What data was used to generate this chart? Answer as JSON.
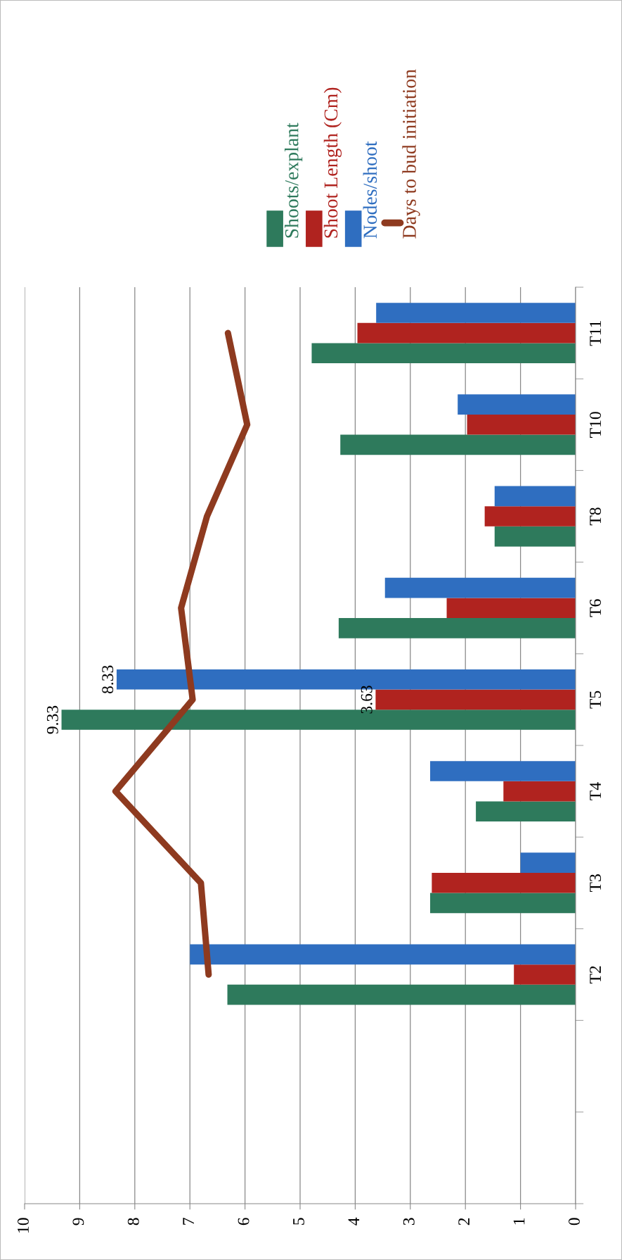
{
  "chart_data": {
    "type": "bar",
    "orientation": "horizontal",
    "categories": [
      "T11",
      "T10",
      "T8",
      "T6",
      "T5",
      "T4",
      "T3",
      "T2",
      null,
      null
    ],
    "series": [
      {
        "name": "Shoots/explant",
        "color": "#2e7a5c",
        "values": [
          4.79,
          4.27,
          1.47,
          4.3,
          9.33,
          1.81,
          2.64,
          6.32,
          null,
          null
        ],
        "value_labels": [
          null,
          null,
          null,
          null,
          "9.33",
          null,
          null,
          null,
          null,
          null
        ]
      },
      {
        "name": "Shoot Length (Cm)",
        "color": "#b0231f",
        "values": [
          3.96,
          1.97,
          1.65,
          2.34,
          3.63,
          1.31,
          2.61,
          1.12,
          null,
          null
        ],
        "value_labels": [
          null,
          null,
          null,
          null,
          "3.63",
          null,
          null,
          null,
          null,
          null
        ]
      },
      {
        "name": "Nodes/shoot",
        "color": "#2f6ec0",
        "values": [
          3.62,
          2.14,
          1.47,
          3.46,
          8.33,
          2.64,
          1.0,
          7.0,
          null,
          null
        ],
        "value_labels": [
          null,
          null,
          null,
          null,
          "8.33",
          null,
          null,
          null,
          null,
          null
        ]
      },
      {
        "name": "Days to bud initiation",
        "type": "line",
        "color": "#8e3a1f",
        "values": [
          6.31,
          5.96,
          6.69,
          7.16,
          6.95,
          8.35,
          6.8,
          6.66,
          null,
          null
        ]
      }
    ],
    "xlim": [
      10,
      0
    ],
    "xticks": [
      0,
      1,
      2,
      3,
      4,
      5,
      6,
      7,
      8,
      9,
      10
    ],
    "grid": "x",
    "legend": "top right"
  }
}
